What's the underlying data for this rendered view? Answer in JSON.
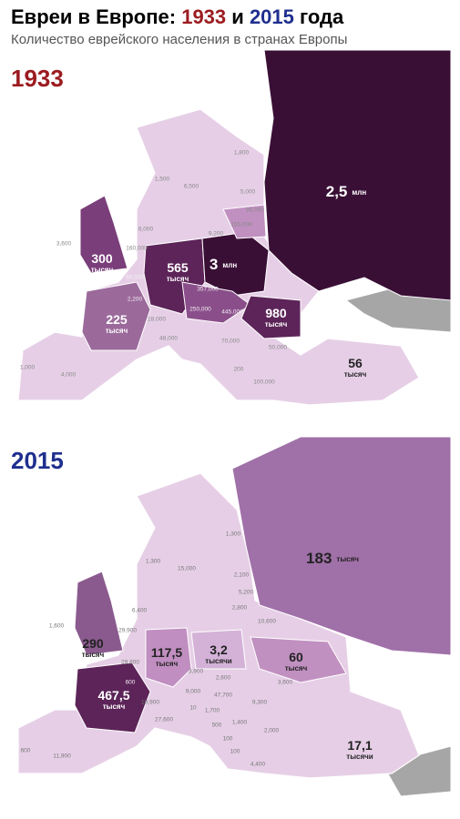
{
  "header": {
    "title_start": "Евреи в Европе:",
    "year1": "1933",
    "conj": "и",
    "year2": "2015",
    "title_end": "года",
    "subtitle": "Количество еврейского населения в странах Европы"
  },
  "maps": [
    {
      "year": "1933",
      "labels": [
        {
          "value": "1,800"
        },
        {
          "value": "1,500"
        },
        {
          "value": "6,500"
        },
        {
          "value": "5,000"
        },
        {
          "value": "95,000"
        },
        {
          "value": "155,000"
        },
        {
          "value": "9,200"
        },
        {
          "value": "6,000"
        },
        {
          "value": "160,000"
        },
        {
          "value": "3,600"
        },
        {
          "value": "300",
          "unit": "тысяч"
        },
        {
          "value": "60,000"
        },
        {
          "value": "2,200"
        },
        {
          "value": "565",
          "unit": "тысяч"
        },
        {
          "value": "3",
          "unit": "млн"
        },
        {
          "value": "2,5",
          "unit": "млн"
        },
        {
          "value": "357,000"
        },
        {
          "value": "250,000"
        },
        {
          "value": "445,000"
        },
        {
          "value": "225",
          "unit": "тысяч"
        },
        {
          "value": "18,000"
        },
        {
          "value": "980",
          "unit": "тысяч"
        },
        {
          "value": "48,000"
        },
        {
          "value": "70,000"
        },
        {
          "value": "50,000"
        },
        {
          "value": "1,000"
        },
        {
          "value": "4,000"
        },
        {
          "value": "200"
        },
        {
          "value": "56",
          "unit": "тысяч"
        },
        {
          "value": "100,000"
        }
      ]
    },
    {
      "year": "2015",
      "labels": [
        {
          "value": "1,300"
        },
        {
          "value": "1,300"
        },
        {
          "value": "15,000"
        },
        {
          "value": "2,100"
        },
        {
          "value": "5,200"
        },
        {
          "value": "6,400"
        },
        {
          "value": "2,800"
        },
        {
          "value": "10,600"
        },
        {
          "value": "1,600"
        },
        {
          "value": "29,900"
        },
        {
          "value": "290",
          "unit": "тысяч"
        },
        {
          "value": "117,5",
          "unit": "тысяч"
        },
        {
          "value": "3,2",
          "unit": "тысячи"
        },
        {
          "value": "60",
          "unit": "тысяч"
        },
        {
          "value": "29,800"
        },
        {
          "value": "3,900"
        },
        {
          "value": "2,600"
        },
        {
          "value": "600"
        },
        {
          "value": "467,5",
          "unit": "тысяч"
        },
        {
          "value": "9,000"
        },
        {
          "value": "47,700"
        },
        {
          "value": "3,600"
        },
        {
          "value": "18,900"
        },
        {
          "value": "10"
        },
        {
          "value": "1,700"
        },
        {
          "value": "9,300"
        },
        {
          "value": "27,600"
        },
        {
          "value": "500"
        },
        {
          "value": "1,400"
        },
        {
          "value": "2,000"
        },
        {
          "value": "100"
        },
        {
          "value": "100"
        },
        {
          "value": "183",
          "unit": "тысяч"
        },
        {
          "value": "17,1",
          "unit": "тысячи"
        },
        {
          "value": "600"
        },
        {
          "value": "11,900"
        },
        {
          "value": "4,400"
        }
      ]
    }
  ]
}
